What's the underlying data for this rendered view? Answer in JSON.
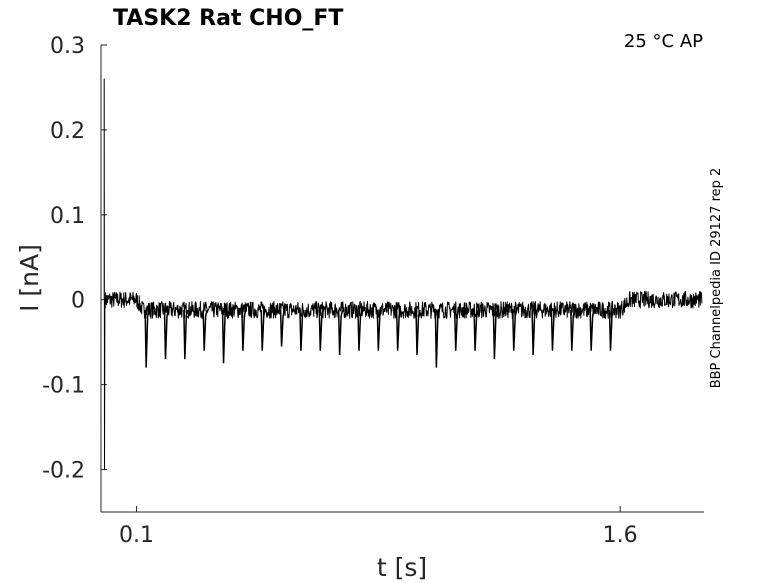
{
  "chart_data": {
    "type": "line",
    "title": "TASK2  Rat  CHO_FT",
    "annotation_top_right": "25 °C  AP",
    "side_label": "BBP Channelpedia ID 29127 rep 2",
    "xlabel": "t [s]",
    "ylabel": "I [nA]",
    "xlim": [
      -0.01,
      1.86
    ],
    "ylim": [
      -0.25,
      0.3
    ],
    "x_ticks": [
      0.1,
      1.6
    ],
    "x_tick_labels": [
      "0.1",
      "1.6"
    ],
    "y_ticks": [
      0.3,
      0.2,
      0.1,
      0,
      -0.1,
      -0.2
    ],
    "y_tick_labels": [
      "0.3",
      "0.2",
      "0.1",
      "0",
      "-0.1",
      "-0.2"
    ],
    "grid": false,
    "trace_color": "#000000",
    "series": [
      {
        "baseline_before_train": 0.0,
        "baseline_during_train": -0.012,
        "baseline_after_train": 0.0,
        "noise_amplitude": 0.01,
        "onset_transient": {
          "x": 0.0,
          "peak_positive": 0.26,
          "peak_negative": -0.2
        },
        "spike_train_start": 0.12,
        "spike_train_end": 1.6,
        "spike_times": [
          0.13,
          0.19,
          0.25,
          0.31,
          0.37,
          0.43,
          0.49,
          0.55,
          0.61,
          0.67,
          0.73,
          0.79,
          0.85,
          0.91,
          0.97,
          1.03,
          1.09,
          1.15,
          1.21,
          1.27,
          1.33,
          1.39,
          1.45,
          1.51,
          1.57
        ],
        "spike_minima": [
          -0.08,
          -0.07,
          -0.07,
          -0.06,
          -0.075,
          -0.06,
          -0.06,
          -0.055,
          -0.06,
          -0.06,
          -0.065,
          -0.06,
          -0.06,
          -0.06,
          -0.065,
          -0.08,
          -0.06,
          -0.06,
          -0.07,
          -0.06,
          -0.065,
          -0.06,
          -0.06,
          -0.06,
          -0.06
        ]
      }
    ]
  }
}
